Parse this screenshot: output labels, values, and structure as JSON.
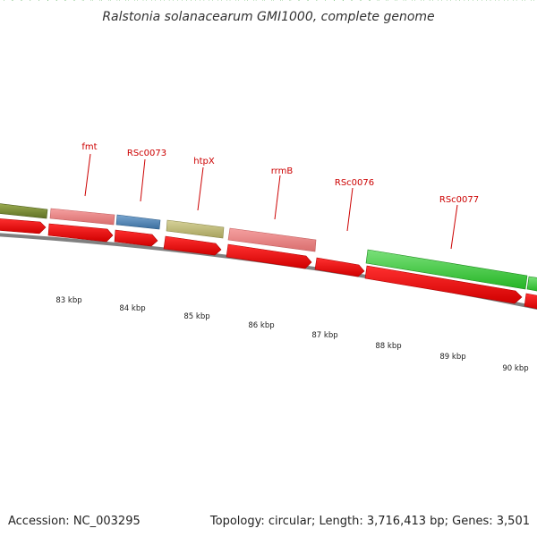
{
  "title": "Ralstonia solanacearum GMI1000, complete genome",
  "footer": {
    "accession": "Accession: NC_003295",
    "summary": "Topology: circular; Length: 3,716,413 bp; Genes: 3,501"
  },
  "colors": {
    "gene_label": "#cc0000",
    "cds_arrow": "#ff0000",
    "backbone": "#808080",
    "tick": "#1a8f1a"
  },
  "genes": [
    {
      "name": "fmt"
    },
    {
      "name": "RSc0073"
    },
    {
      "name": "htpX"
    },
    {
      "name": "rrmB"
    },
    {
      "name": "RSc0076"
    },
    {
      "name": "RSc0077"
    }
  ],
  "scale": {
    "labels": [
      "83 kbp",
      "84 kbp",
      "85 kbp",
      "86 kbp",
      "87 kbp",
      "88 kbp",
      "89 kbp",
      "90 kbp"
    ]
  }
}
